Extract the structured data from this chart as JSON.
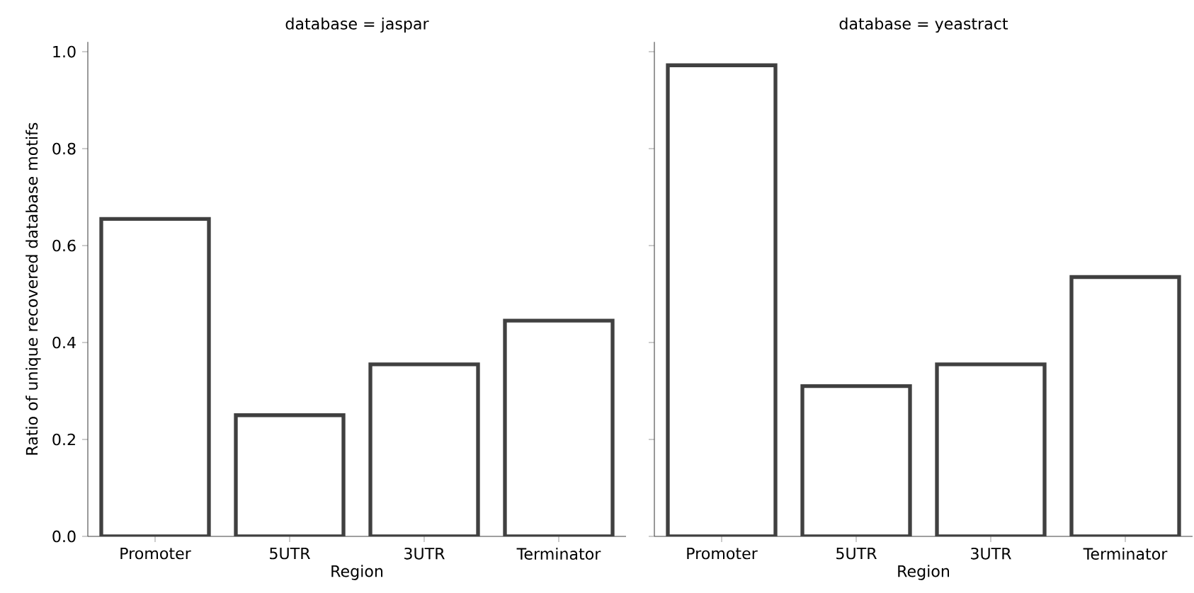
{
  "chart_data": [
    {
      "type": "bar",
      "title": "database = jaspar",
      "xlabel": "Region",
      "ylabel": "Ratio of unique recovered database motifs",
      "categories": [
        "Promoter",
        "5UTR",
        "3UTR",
        "Terminator"
      ],
      "values": [
        0.655,
        0.25,
        0.355,
        0.445
      ],
      "color": "#ffffff",
      "ylim": [
        0,
        1.02
      ],
      "yticks": [
        {
          "value": 0,
          "label": "0.0"
        },
        {
          "value": 0.2,
          "label": "0.2"
        },
        {
          "value": 0.4,
          "label": "0.4"
        },
        {
          "value": 0.6,
          "label": "0.6"
        },
        {
          "value": 0.8,
          "label": "0.8"
        },
        {
          "value": 1.0,
          "label": "1.0"
        }
      ]
    },
    {
      "type": "bar",
      "title": "database = yeastract",
      "xlabel": "Region",
      "categories": [
        "Promoter",
        "5UTR",
        "3UTR",
        "Terminator"
      ],
      "values": [
        0.972,
        0.31,
        0.355,
        0.535
      ],
      "color": "#ffffff",
      "ylim": [
        0,
        1.02
      ],
      "yticks": [
        {
          "value": 0,
          "label": null
        },
        {
          "value": 0.2,
          "label": null
        },
        {
          "value": 0.4,
          "label": null
        },
        {
          "value": 0.6,
          "label": null
        },
        {
          "value": 0.8,
          "label": null
        },
        {
          "value": 1.0,
          "label": null
        }
      ],
      "tick_labels": "x"
    }
  ]
}
